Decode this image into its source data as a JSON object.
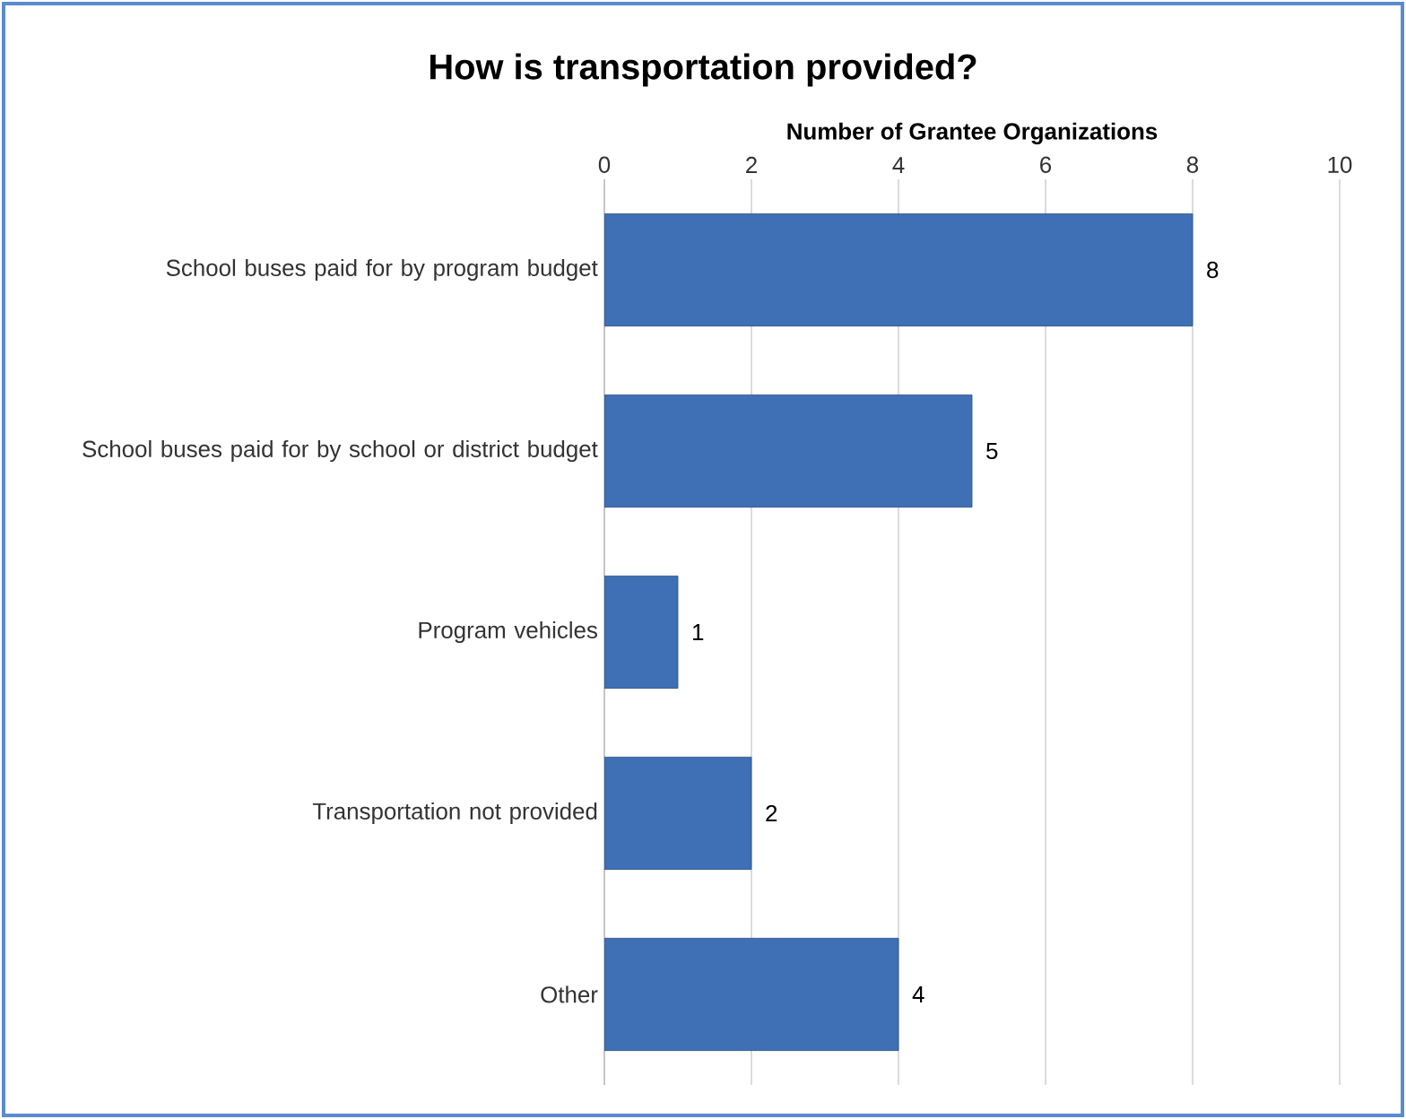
{
  "chart_data": {
    "type": "bar",
    "orientation": "horizontal",
    "title": "How is transportation provided?",
    "xlabel": "Number of Grantee Organizations",
    "categories": [
      "School buses paid for by program budget",
      "School buses paid for by school or district budget",
      "Program vehicles",
      "Transportation not provided",
      "Other"
    ],
    "values": [
      8,
      5,
      1,
      2,
      4
    ],
    "color": "#3f6fb5",
    "xlim": [
      0,
      10
    ],
    "xticks": [
      0,
      2,
      4,
      6,
      8,
      10
    ],
    "grid": "x",
    "data_labels": true
  }
}
